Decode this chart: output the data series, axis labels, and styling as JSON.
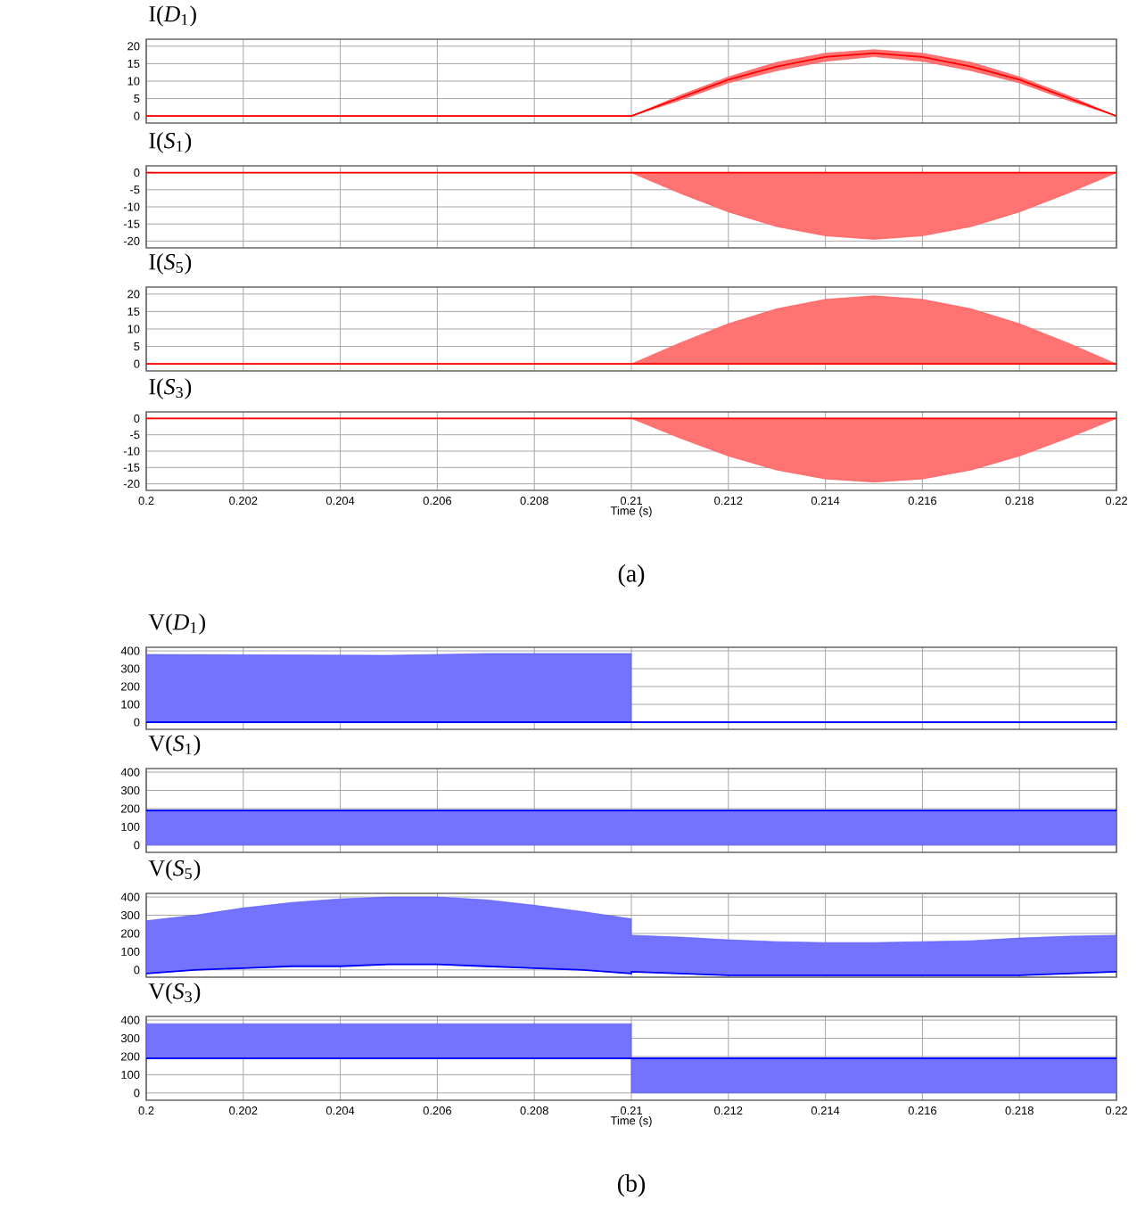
{
  "chart_data": [
    {
      "type": "line",
      "title": "I(*D*$_{1}$)",
      "xlim": [
        0.2,
        0.22
      ],
      "xticks": [
        0.2,
        0.202,
        0.204,
        0.206,
        0.208,
        0.21,
        0.212,
        0.214,
        0.216,
        0.218,
        0.22
      ],
      "ylim": [
        -2,
        22
      ],
      "yticks": [
        0,
        5,
        10,
        15,
        20
      ],
      "grid": true,
      "tick_labels": "y",
      "series": [
        {
          "color": "#ff0000",
          "x": [
            0.2,
            0.21,
            0.211,
            0.212,
            0.213,
            0.214,
            0.215,
            0.216,
            0.217,
            0.218,
            0.219,
            0.22
          ],
          "values": [
            0,
            0,
            5.2,
            10.4,
            14.2,
            16.9,
            18,
            16.9,
            14.2,
            10.4,
            5.2,
            0
          ],
          "lower": [
            0,
            0,
            4.5,
            9.5,
            13,
            15.7,
            17,
            15.7,
            13,
            9.5,
            4.5,
            0
          ],
          "upper": [
            0,
            0,
            5.9,
            11.2,
            15.4,
            18,
            19,
            18,
            15.4,
            11.2,
            5.9,
            0
          ]
        }
      ]
    },
    {
      "type": "line",
      "title": "I(*S*$_{1}$)",
      "xlim": [
        0.2,
        0.22
      ],
      "xticks": [
        0.2,
        0.202,
        0.204,
        0.206,
        0.208,
        0.21,
        0.212,
        0.214,
        0.216,
        0.218,
        0.22
      ],
      "ylim": [
        -22,
        2
      ],
      "yticks": [
        -20,
        -15,
        -10,
        -5,
        0
      ],
      "grid": true,
      "tick_labels": "y",
      "series": [
        {
          "color": "#ff0000",
          "x": [
            0.2,
            0.21,
            0.211,
            0.212,
            0.213,
            0.214,
            0.215,
            0.216,
            0.217,
            0.218,
            0.219,
            0.22
          ],
          "values": [
            0,
            0,
            0,
            0,
            0,
            0,
            0,
            0,
            0,
            0,
            0,
            0
          ],
          "lower": [
            0,
            0,
            -6,
            -11.5,
            -15.8,
            -18.5,
            -19.5,
            -18.5,
            -15.8,
            -11.5,
            -6,
            0
          ],
          "upper": [
            0,
            0,
            0,
            0,
            0,
            0,
            0,
            0,
            0,
            0,
            0,
            0
          ]
        }
      ]
    },
    {
      "type": "line",
      "title": "I(*S*$_{5}$)",
      "xlim": [
        0.2,
        0.22
      ],
      "xticks": [
        0.2,
        0.202,
        0.204,
        0.206,
        0.208,
        0.21,
        0.212,
        0.214,
        0.216,
        0.218,
        0.22
      ],
      "ylim": [
        -2,
        22
      ],
      "yticks": [
        0,
        5,
        10,
        15,
        20
      ],
      "grid": true,
      "tick_labels": "y",
      "series": [
        {
          "color": "#ff0000",
          "x": [
            0.2,
            0.21,
            0.211,
            0.212,
            0.213,
            0.214,
            0.215,
            0.216,
            0.217,
            0.218,
            0.219,
            0.22
          ],
          "values": [
            0,
            0,
            0,
            0,
            0,
            0,
            0,
            0,
            0,
            0,
            0,
            0
          ],
          "lower": [
            0,
            0,
            0,
            0,
            0,
            0,
            0,
            0,
            0,
            0,
            0,
            0
          ],
          "upper": [
            0,
            0,
            6,
            11.5,
            15.8,
            18.5,
            19.5,
            18.5,
            15.8,
            11.5,
            6,
            0
          ]
        }
      ]
    },
    {
      "type": "line",
      "title": "I(*S*$_{3}$)",
      "xlabel": "Time (s)",
      "annotations": [
        "(a)"
      ],
      "xlim": [
        0.2,
        0.22
      ],
      "xticks": [
        0.2,
        0.202,
        0.204,
        0.206,
        0.208,
        0.21,
        0.212,
        0.214,
        0.216,
        0.218,
        0.22
      ],
      "ylim": [
        -22,
        2
      ],
      "yticks": [
        -20,
        -15,
        -10,
        -5,
        0
      ],
      "grid": true,
      "series": [
        {
          "color": "#ff0000",
          "x": [
            0.2,
            0.21,
            0.211,
            0.212,
            0.213,
            0.214,
            0.215,
            0.216,
            0.217,
            0.218,
            0.219,
            0.22
          ],
          "values": [
            0,
            0,
            0,
            0,
            0,
            0,
            0,
            0,
            0,
            0,
            0,
            0
          ],
          "lower": [
            0,
            0,
            -6,
            -11.5,
            -15.8,
            -18.5,
            -19.5,
            -18.5,
            -15.8,
            -11.5,
            -6,
            0
          ],
          "upper": [
            0,
            0,
            0,
            0,
            0,
            0,
            0,
            0,
            0,
            0,
            0,
            0
          ]
        }
      ]
    },
    {
      "type": "line",
      "title": "V(*D*$_{1}$)",
      "xlim": [
        0.2,
        0.22
      ],
      "xticks": [
        0.2,
        0.202,
        0.204,
        0.206,
        0.208,
        0.21,
        0.212,
        0.214,
        0.216,
        0.218,
        0.22
      ],
      "ylim": [
        -40,
        420
      ],
      "yticks": [
        0,
        100,
        200,
        300,
        400
      ],
      "grid": true,
      "tick_labels": "y",
      "series": [
        {
          "color": "#0000ff",
          "x": [
            0.2,
            0.205,
            0.207,
            0.21,
            0.21,
            0.22
          ],
          "values": [
            0,
            0,
            0,
            0,
            0,
            0
          ],
          "lower": [
            0,
            0,
            0,
            0,
            0,
            0
          ],
          "upper": [
            380,
            375,
            385,
            385,
            0,
            0
          ]
        }
      ]
    },
    {
      "type": "line",
      "title": "V(*S*$_{1}$)",
      "xlim": [
        0.2,
        0.22
      ],
      "xticks": [
        0.2,
        0.202,
        0.204,
        0.206,
        0.208,
        0.21,
        0.212,
        0.214,
        0.216,
        0.218,
        0.22
      ],
      "ylim": [
        -40,
        420
      ],
      "yticks": [
        0,
        100,
        200,
        300,
        400
      ],
      "grid": true,
      "tick_labels": "y",
      "series": [
        {
          "color": "#0000ff",
          "x": [
            0.2,
            0.22
          ],
          "values": [
            190,
            190
          ],
          "lower": [
            0,
            0
          ],
          "upper": [
            190,
            190
          ]
        }
      ]
    },
    {
      "type": "line",
      "title": "V(*S*$_{5}$)",
      "xlim": [
        0.2,
        0.22
      ],
      "xticks": [
        0.2,
        0.202,
        0.204,
        0.206,
        0.208,
        0.21,
        0.212,
        0.214,
        0.216,
        0.218,
        0.22
      ],
      "ylim": [
        -40,
        420
      ],
      "yticks": [
        0,
        100,
        200,
        300,
        400
      ],
      "grid": true,
      "tick_labels": "y",
      "series": [
        {
          "color": "#0000ff",
          "x": [
            0.2,
            0.201,
            0.202,
            0.203,
            0.204,
            0.205,
            0.206,
            0.207,
            0.208,
            0.209,
            0.21,
            0.21,
            0.211,
            0.212,
            0.213,
            0.214,
            0.215,
            0.216,
            0.217,
            0.218,
            0.219,
            0.22
          ],
          "values": [
            -20,
            0,
            10,
            20,
            20,
            30,
            30,
            20,
            10,
            0,
            -20,
            -10,
            -20,
            -30,
            -30,
            -30,
            -30,
            -30,
            -30,
            -30,
            -20,
            -10
          ],
          "lower": [
            -20,
            0,
            10,
            20,
            20,
            30,
            30,
            20,
            10,
            0,
            -20,
            -10,
            -20,
            -30,
            -30,
            -30,
            -30,
            -30,
            -30,
            -30,
            -20,
            -10
          ],
          "upper": [
            270,
            300,
            340,
            370,
            390,
            400,
            400,
            385,
            355,
            320,
            280,
            190,
            180,
            165,
            155,
            150,
            150,
            155,
            160,
            175,
            185,
            190
          ]
        }
      ]
    },
    {
      "type": "line",
      "title": "V(*S*$_{3}$)",
      "xlabel": "Time (s)",
      "annotations": [
        "(b)"
      ],
      "xlim": [
        0.2,
        0.22
      ],
      "xticks": [
        0.2,
        0.202,
        0.204,
        0.206,
        0.208,
        0.21,
        0.212,
        0.214,
        0.216,
        0.218,
        0.22
      ],
      "ylim": [
        -40,
        420
      ],
      "yticks": [
        0,
        100,
        200,
        300,
        400
      ],
      "grid": true,
      "series": [
        {
          "color": "#0000ff",
          "x": [
            0.2,
            0.21,
            0.21,
            0.22
          ],
          "values": [
            190,
            190,
            190,
            190
          ],
          "lower": [
            190,
            190,
            0,
            0
          ],
          "upper": [
            380,
            380,
            190,
            190
          ]
        }
      ]
    }
  ]
}
